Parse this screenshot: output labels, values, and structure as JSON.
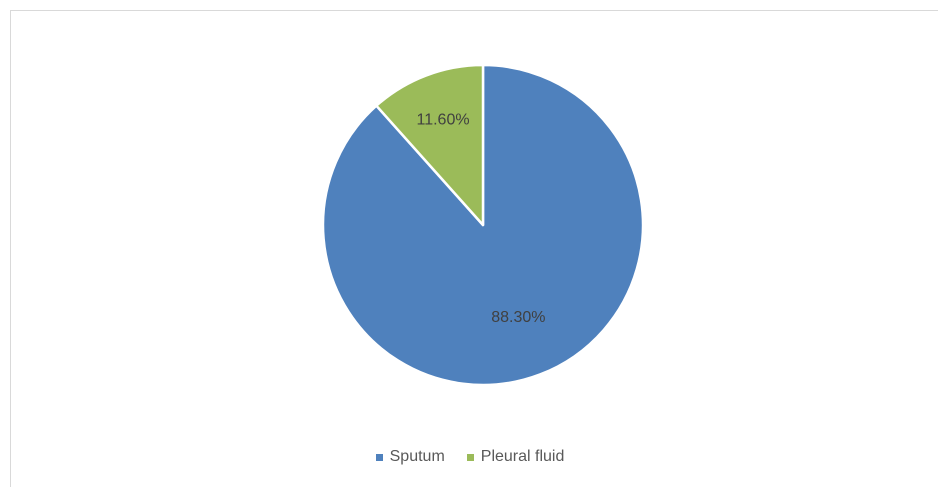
{
  "chart_data": {
    "type": "pie",
    "title": "",
    "slices": [
      {
        "name": "Sputum",
        "value": 88.3,
        "label": "88.30%",
        "color": "#4f81bd"
      },
      {
        "name": "Pleural fluid",
        "value": 11.6,
        "label": "11.60%",
        "color": "#9bbb59"
      }
    ],
    "legend_position": "bottom"
  }
}
